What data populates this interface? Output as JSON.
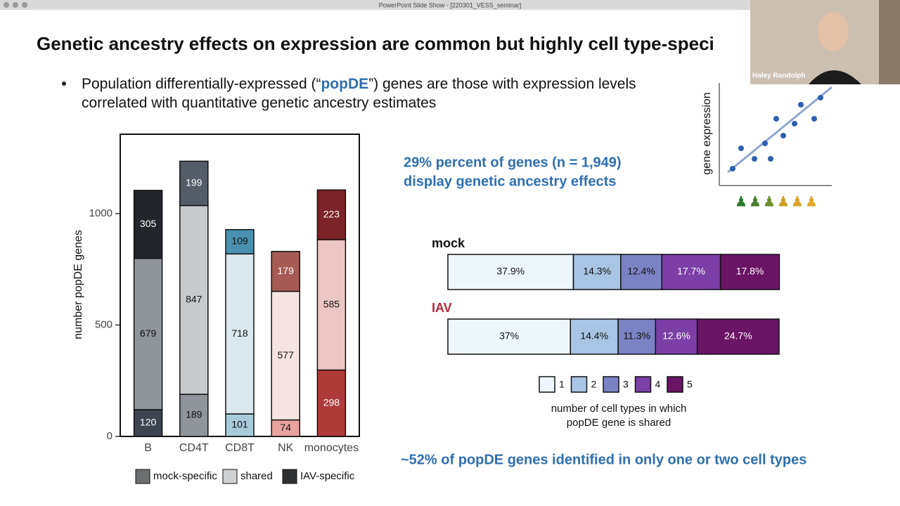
{
  "window": {
    "title": "PowerPoint Slide Show - [220301_VESS_seminar]"
  },
  "video": {
    "name": "Haley Randolph"
  },
  "slide": {
    "title": "Genetic ancestry effects on expression are common but highly cell type-speci",
    "bullet": {
      "before": "Population differentially-expressed (“",
      "highlight": "popDE",
      "after": "”) genes are those with expression levels correlated with quantitative genetic ancestry estimates"
    },
    "callout": [
      "29% percent of genes (n = 1,949)",
      "display genetic ancestry effects"
    ],
    "footer": "~52% of popDE genes identified in only one or two cell types",
    "inset": {
      "ylabel": "gene expression"
    }
  },
  "chart_data": [
    {
      "type": "stacked-bar",
      "ylabel": "number popDE genes",
      "categories": [
        "B",
        "CD4T",
        "CD8T",
        "NK",
        "monocytes"
      ],
      "ylim": [
        0,
        1356
      ],
      "yticks": [
        0,
        500,
        1000
      ],
      "series": [
        {
          "name": "mock-specific",
          "color": "#6d6e70",
          "values": [
            120,
            189,
            101,
            74,
            298
          ],
          "bar_colors": [
            "#3c4450",
            "#8f959b",
            "#a8cbd9",
            "#e8a3a0",
            "#b03a3a"
          ]
        },
        {
          "name": "shared",
          "color": "#cfd0d1",
          "values": [
            679,
            847,
            718,
            577,
            585
          ],
          "bar_colors": [
            "#8f959b",
            "#c8cacd",
            "#dbe9ef",
            "#f6e4e2",
            "#ecc7c5"
          ]
        },
        {
          "name": "IAV-specific",
          "color": "#2f3032",
          "values": [
            305,
            199,
            109,
            179,
            223
          ],
          "bar_colors": [
            "#22262b",
            "#545c68",
            "#4a90b0",
            "#a65a55",
            "#7a2328"
          ]
        }
      ]
    },
    {
      "type": "stacked-hbar",
      "categories": [
        "mock",
        "IAV"
      ],
      "category_colors": [
        "#111111",
        "#b52a3a"
      ],
      "xlim": [
        0,
        100
      ],
      "legend_title": [
        "number of cell types in which",
        "popDE gene is shared"
      ],
      "series": [
        {
          "name": "1",
          "color": "#eef7fb",
          "values": [
            37.9,
            37
          ],
          "value_labels": [
            "37.9%",
            "37%"
          ]
        },
        {
          "name": "2",
          "color": "#a9c4e4",
          "values": [
            14.3,
            14.4
          ],
          "value_labels": [
            "14.3%",
            "14.4%"
          ]
        },
        {
          "name": "3",
          "color": "#7b83c4",
          "values": [
            12.4,
            11.3
          ],
          "value_labels": [
            "12.4%",
            "11.3%"
          ]
        },
        {
          "name": "4",
          "color": "#7b3fa6",
          "values": [
            17.7,
            12.6
          ],
          "value_labels": [
            "17.7%",
            "12.6%"
          ]
        },
        {
          "name": "5",
          "color": "#6a1466",
          "values": [
            17.8,
            24.7
          ],
          "value_labels": [
            "17.8%",
            "24.7%"
          ]
        }
      ]
    }
  ]
}
